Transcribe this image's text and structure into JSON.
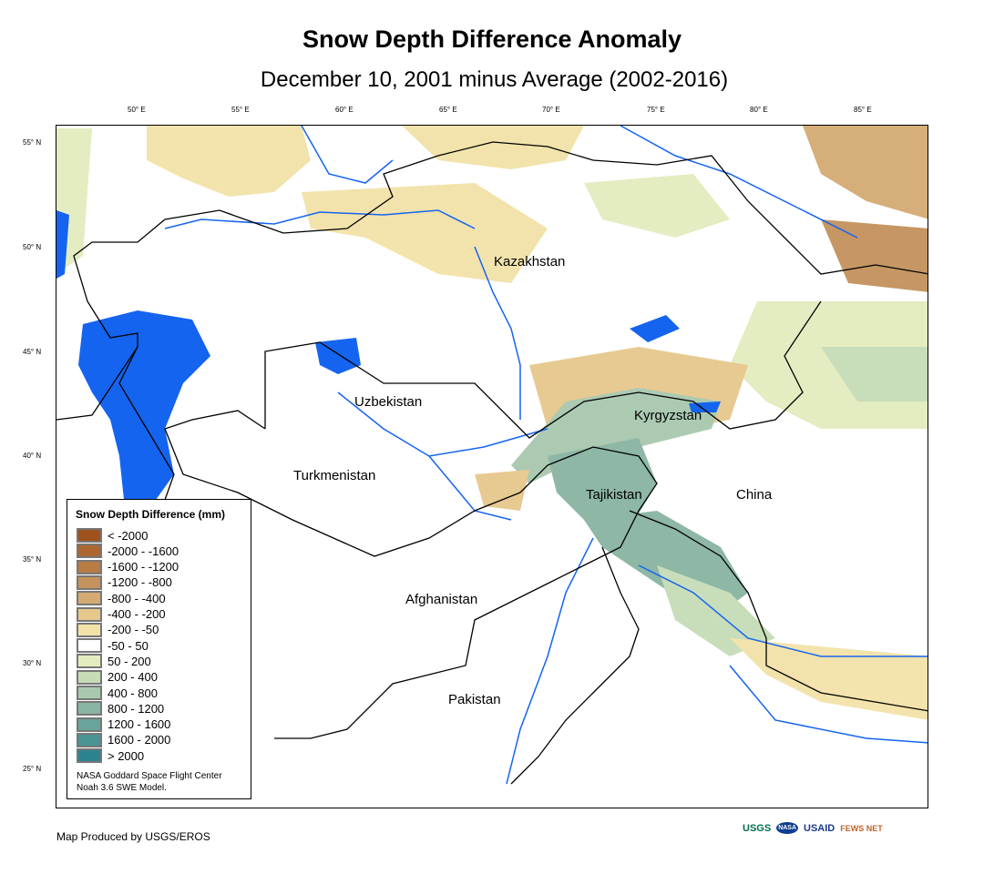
{
  "title": "Snow Depth Difference Anomaly",
  "subtitle": "December 10, 2001 minus Average (2002-2016)",
  "lon_ticks": [
    "50° E",
    "55° E",
    "60° E",
    "65° E",
    "70° E",
    "75° E",
    "80° E",
    "85° E"
  ],
  "lat_ticks": [
    "55° N",
    "50° N",
    "45° N",
    "40° N",
    "35° N",
    "30° N",
    "25° N"
  ],
  "countries": [
    "Kazakhstan",
    "Uzbekistan",
    "Kyrgyzstan",
    "Turkmenistan",
    "Tajikistan",
    "China",
    "Afghanistan",
    "Pakistan"
  ],
  "legend": {
    "title": "Snow Depth Difference (mm)",
    "items": [
      {
        "label": "< -2000",
        "color": "#a0521e"
      },
      {
        "label": "-2000 - -1600",
        "color": "#ad6630"
      },
      {
        "label": "-1600 - -1200",
        "color": "#b87c45"
      },
      {
        "label": "-1200 - -800",
        "color": "#c4925c"
      },
      {
        "label": "-800 - -400",
        "color": "#d4aa72"
      },
      {
        "label": "-400 - -200",
        "color": "#e6c88c"
      },
      {
        "label": "-200 - -50",
        "color": "#f2e2a8"
      },
      {
        "label": "-50 - 50",
        "color": "#ffffff"
      },
      {
        "label": "50 - 200",
        "color": "#e3ecbe"
      },
      {
        "label": "200 - 400",
        "color": "#c6dcb6"
      },
      {
        "label": "400 - 800",
        "color": "#a8c8ae"
      },
      {
        "label": "800 - 1200",
        "color": "#88b4a2"
      },
      {
        "label": "1200 - 1600",
        "color": "#68a49a"
      },
      {
        "label": "1600 - 2000",
        "color": "#4a9496"
      },
      {
        "label": "> 2000",
        "color": "#2a8490"
      }
    ],
    "credit1": "NASA Goddard Space Flight Center",
    "credit2": "Noah 3.6 SWE Model."
  },
  "producer": "Map Produced by USGS/EROS",
  "logos": [
    "USGS",
    "NASA",
    "USAID",
    "FEWS NET"
  ],
  "water_color": "#1464f0"
}
